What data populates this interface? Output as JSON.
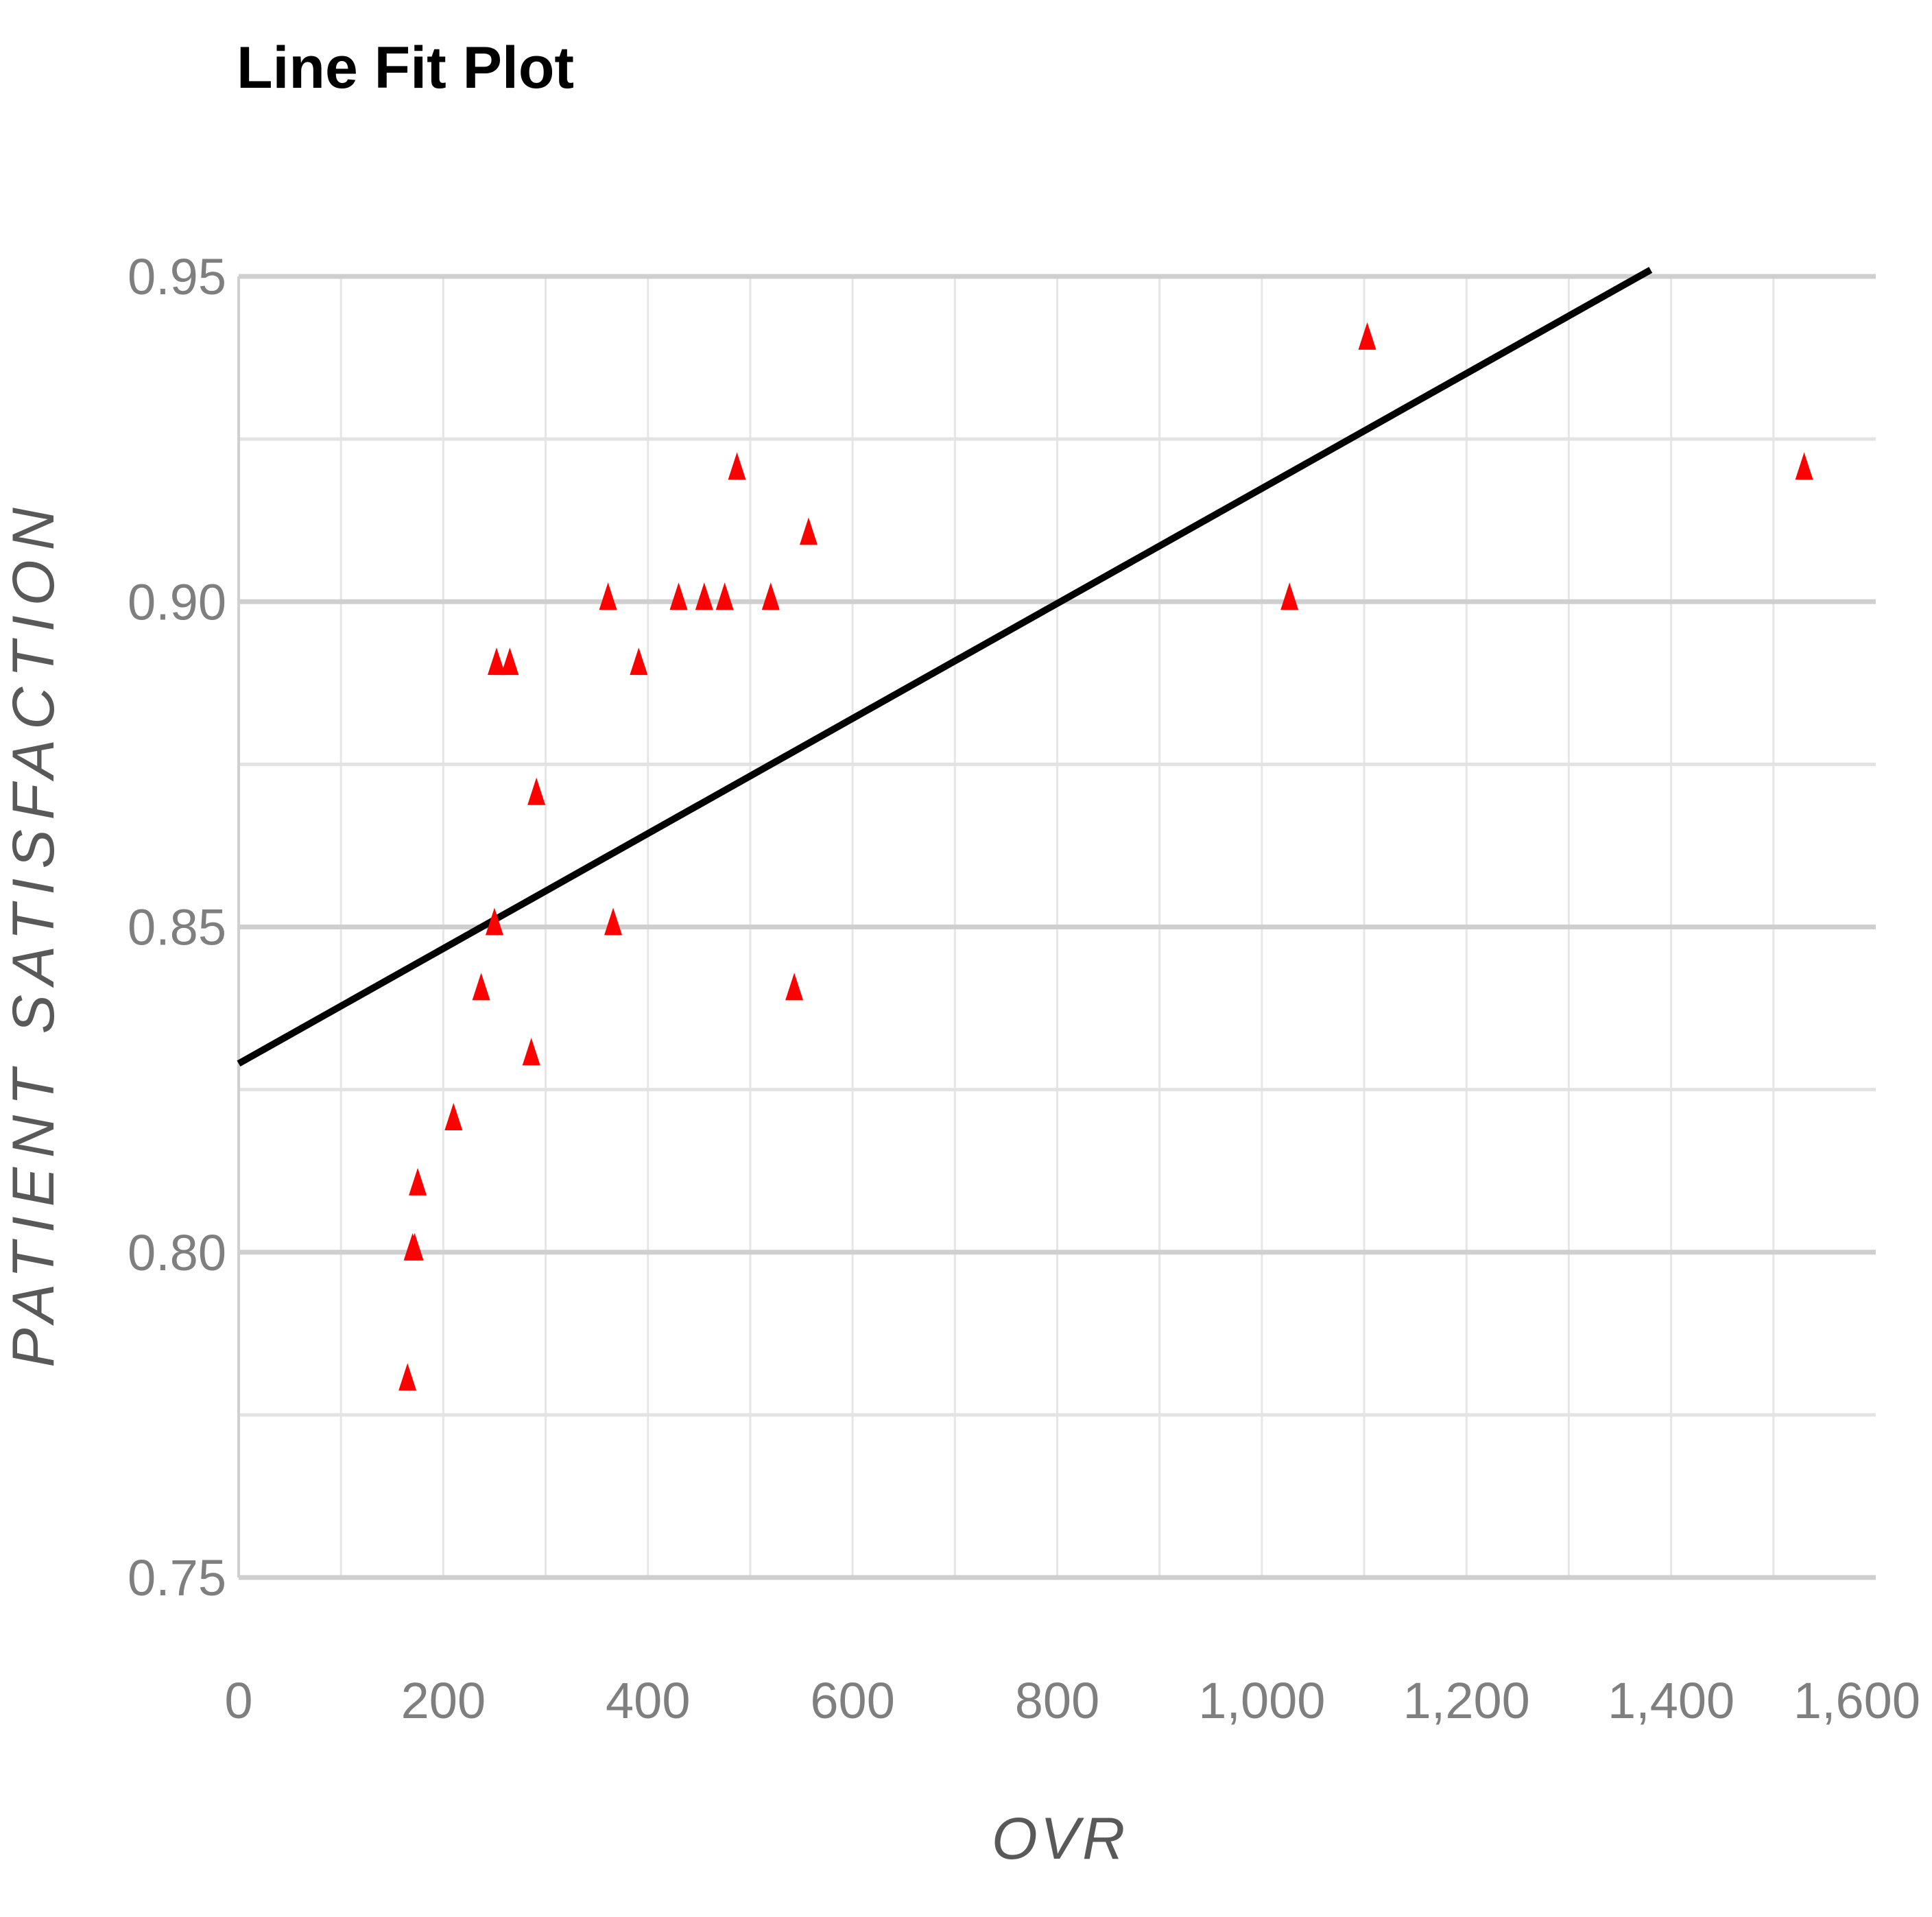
{
  "chart_data": {
    "type": "scatter",
    "title": "Line Fit Plot",
    "xlabel": "OVR",
    "ylabel": "PATIENT SATISFACTION",
    "xlim": [
      0,
      1600
    ],
    "ylim": [
      0.75,
      0.95
    ],
    "x_ticks": [
      "0",
      "200",
      "400",
      "600",
      "800",
      "1,000",
      "1,200",
      "1,400",
      "1,600"
    ],
    "y_ticks": [
      "0.95",
      "0.90",
      "0.85",
      "0.80",
      "0.75"
    ],
    "grid": true,
    "series": [
      {
        "marker": "triangle",
        "color": "#ff0000",
        "points": [
          {
            "x": 165,
            "y": 0.78
          },
          {
            "x": 170,
            "y": 0.8
          },
          {
            "x": 172,
            "y": 0.8
          },
          {
            "x": 175,
            "y": 0.81
          },
          {
            "x": 210,
            "y": 0.82
          },
          {
            "x": 237,
            "y": 0.84
          },
          {
            "x": 250,
            "y": 0.85
          },
          {
            "x": 252,
            "y": 0.89
          },
          {
            "x": 265,
            "y": 0.89
          },
          {
            "x": 286,
            "y": 0.83
          },
          {
            "x": 291,
            "y": 0.87
          },
          {
            "x": 361,
            "y": 0.9
          },
          {
            "x": 366,
            "y": 0.85
          },
          {
            "x": 391,
            "y": 0.89
          },
          {
            "x": 430,
            "y": 0.9
          },
          {
            "x": 455,
            "y": 0.9
          },
          {
            "x": 475,
            "y": 0.9
          },
          {
            "x": 487,
            "y": 0.92
          },
          {
            "x": 520,
            "y": 0.9
          },
          {
            "x": 543,
            "y": 0.84
          },
          {
            "x": 557,
            "y": 0.91
          },
          {
            "x": 1027,
            "y": 0.9
          },
          {
            "x": 1103,
            "y": 0.94
          },
          {
            "x": 1530,
            "y": 0.92
          }
        ]
      }
    ],
    "fit_line": {
      "color": "#000000",
      "x": [
        0,
        1380
      ],
      "y": [
        0.829,
        0.951
      ]
    }
  }
}
